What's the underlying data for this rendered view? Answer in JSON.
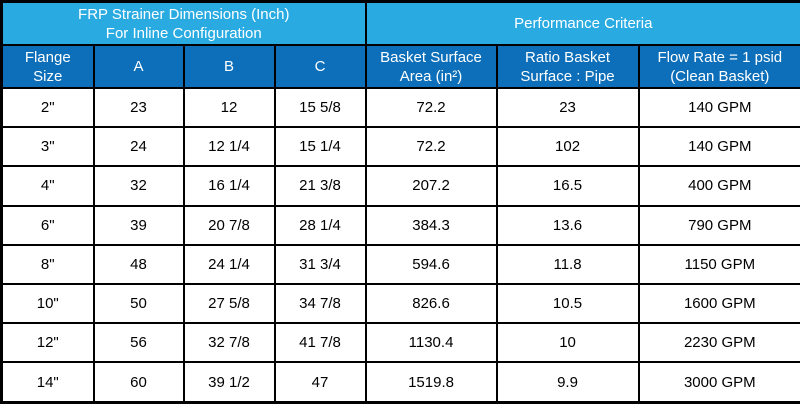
{
  "colors": {
    "light_blue": "#29ABE2",
    "dark_blue": "#0D6FB9",
    "border": "#000000",
    "row_bg": "#FFFFFF",
    "header_text": "#FFFFFF",
    "data_text": "#000000"
  },
  "table": {
    "group_headers": [
      {
        "line1": "FRP Strainer Dimensions (Inch)",
        "line2": "For Inline Configuration",
        "colspan": 4
      },
      {
        "line1": "Performance Criteria",
        "line2": "",
        "colspan": 3
      }
    ],
    "column_headers": [
      {
        "line1": "Flange",
        "line2": "Size"
      },
      {
        "line1": "A",
        "line2": ""
      },
      {
        "line1": "B",
        "line2": ""
      },
      {
        "line1": "C",
        "line2": ""
      },
      {
        "line1": "Basket Surface",
        "line2": "Area (in²)"
      },
      {
        "line1": "Ratio Basket",
        "line2": "Surface : Pipe"
      },
      {
        "line1": "Flow Rate = 1 psid",
        "line2": "(Clean Basket)"
      }
    ]
  },
  "chart_data": {
    "type": "table",
    "title": "FRP Strainer Dimensions (Inch) For Inline Configuration — Performance Criteria",
    "columns": [
      "Flange Size",
      "A",
      "B",
      "C",
      "Basket Surface Area (in²)",
      "Ratio Basket Surface : Pipe",
      "Flow Rate = 1 psid (Clean Basket)"
    ],
    "rows": [
      [
        "2\"",
        "23",
        "12",
        "15 5/8",
        "72.2",
        "23",
        "140 GPM"
      ],
      [
        "3\"",
        "24",
        "12 1/4",
        "15 1/4",
        "72.2",
        "102",
        "140 GPM"
      ],
      [
        "4\"",
        "32",
        "16 1/4",
        "21 3/8",
        "207.2",
        "16.5",
        "400 GPM"
      ],
      [
        "6\"",
        "39",
        "20 7/8",
        "28 1/4",
        "384.3",
        "13.6",
        "790 GPM"
      ],
      [
        "8\"",
        "48",
        "24 1/4",
        "31 3/4",
        "594.6",
        "11.8",
        "1150 GPM"
      ],
      [
        "10\"",
        "50",
        "27 5/8",
        "34 7/8",
        "826.6",
        "10.5",
        "1600 GPM"
      ],
      [
        "12\"",
        "56",
        "32 7/8",
        "41 7/8",
        "1130.4",
        "10",
        "2230 GPM"
      ],
      [
        "14\"",
        "60",
        "39 1/2",
        "47",
        "1519.8",
        "9.9",
        "3000 GPM"
      ]
    ]
  }
}
